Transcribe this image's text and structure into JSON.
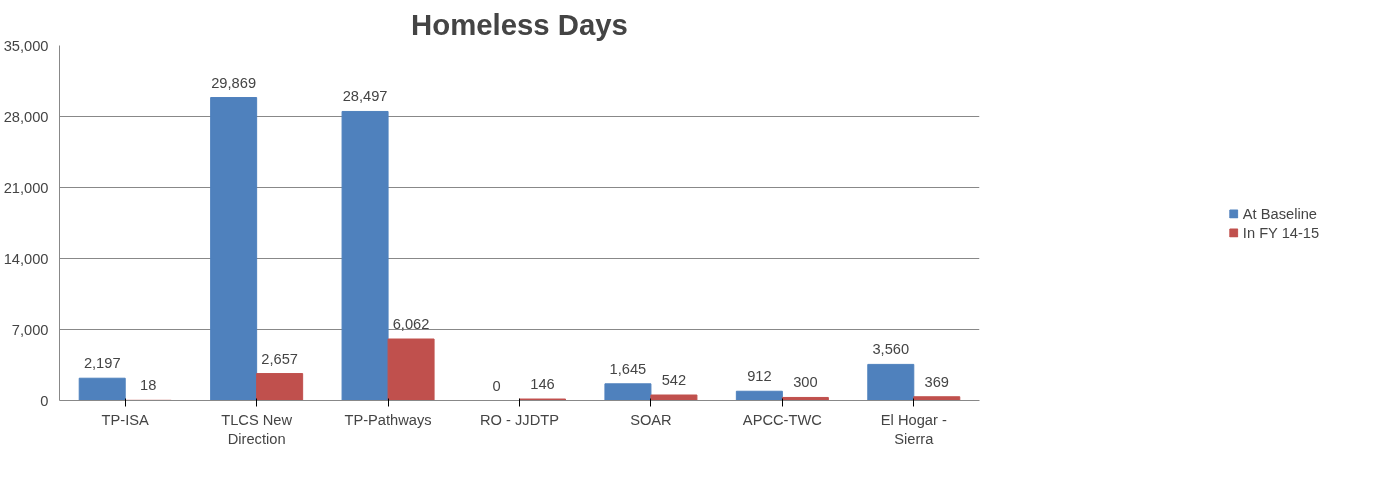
{
  "chart_data": {
    "type": "bar",
    "title": "Homeless Days",
    "categories": [
      "TP-ISA",
      "TLCS New Direction",
      "TP-Pathways",
      "RO - JJDTP",
      "SOAR",
      "APCC-TWC",
      "El Hogar - Sierra"
    ],
    "series": [
      {
        "name": "At Baseline",
        "color": "#4f81bd",
        "values": [
          2197,
          29869,
          28497,
          0,
          1645,
          912,
          3560
        ],
        "value_labels": [
          "2,197",
          "29,869",
          "28,497",
          "0",
          "1,645",
          "912",
          "3,560"
        ]
      },
      {
        "name": "In FY 14-15",
        "color": "#c0504d",
        "values": [
          18,
          2657,
          6062,
          146,
          542,
          300,
          369
        ],
        "value_labels": [
          "18",
          "2,657",
          "6,062",
          "146",
          "542",
          "300",
          "369"
        ]
      }
    ],
    "ylim": [
      0,
      35000
    ],
    "yticks": [
      {
        "value": 0,
        "label": "0"
      },
      {
        "value": 7000,
        "label": "7,000"
      },
      {
        "value": 14000,
        "label": "14,000"
      },
      {
        "value": 21000,
        "label": "21,000"
      },
      {
        "value": 28000,
        "label": "28,000"
      },
      {
        "value": 35000,
        "label": "35,000"
      }
    ],
    "grid": "y",
    "legend": "right",
    "data_labels": true
  }
}
